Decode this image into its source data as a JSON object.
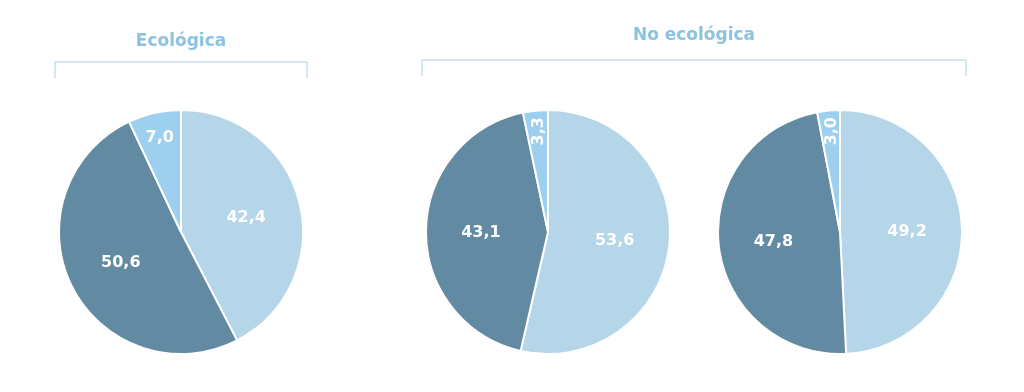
{
  "chart_data": [
    {
      "type": "pie",
      "title": "Ecológica",
      "categories": [
        null,
        null,
        null
      ],
      "values": [
        42.4,
        50.6,
        7.0
      ],
      "value_labels": [
        "42,4",
        "50,6",
        "7,0"
      ],
      "colors": [
        "#b5d5e8",
        "#628ba3",
        "#9dcfee"
      ]
    },
    {
      "type": "pie",
      "title": "No ecológica",
      "categories": [
        null,
        null,
        null
      ],
      "values": [
        53.6,
        43.1,
        3.3
      ],
      "value_labels": [
        "53,6",
        "43,1",
        "3,3"
      ],
      "colors": [
        "#b5d5e8",
        "#628ba3",
        "#9dcfee"
      ]
    },
    {
      "type": "pie",
      "categories": [
        null,
        null,
        null
      ],
      "values": [
        49.2,
        47.8,
        3.0
      ],
      "value_labels": [
        "49,2",
        "47,8",
        "3,0"
      ],
      "colors": [
        "#b5d5e8",
        "#628ba3",
        "#9dcfee"
      ]
    }
  ]
}
